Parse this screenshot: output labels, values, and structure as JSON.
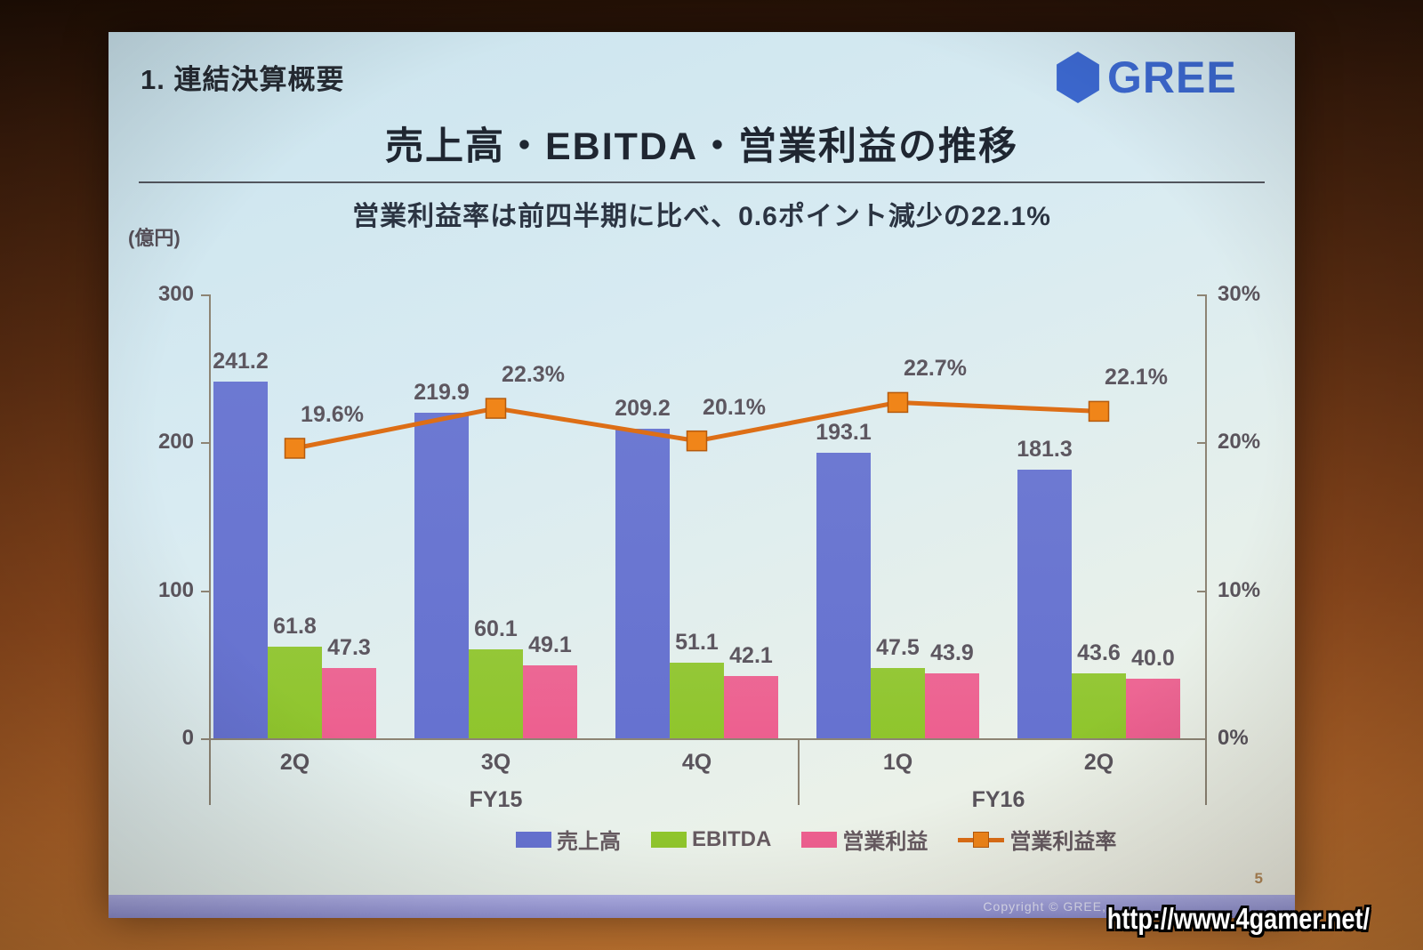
{
  "slide": {
    "section_title": "1. 連結決算概要",
    "title": "売上高・EBITDA・営業利益の推移",
    "subtitle": "営業利益率は前四半期に比べ、0.6ポイント減少の22.1%",
    "unit_label": "(億円)",
    "page_number": "5",
    "copyright": "Copyright © GREE,"
  },
  "logo": {
    "text": "GREE",
    "color": "#3c68cf"
  },
  "watermark": {
    "text": "http://www.4gamer.net/"
  },
  "chart_data": {
    "type": "bar",
    "title": "売上高・EBITDA・営業利益の推移",
    "categories": [
      "2Q",
      "3Q",
      "4Q",
      "1Q",
      "2Q"
    ],
    "category_groups": [
      {
        "label": "FY15",
        "from": 0,
        "to": 2
      },
      {
        "label": "FY16",
        "from": 3,
        "to": 4
      }
    ],
    "series": [
      {
        "name": "売上高",
        "type": "bar",
        "color": "#6672d0",
        "values": [
          241.2,
          219.9,
          209.2,
          193.1,
          181.3
        ]
      },
      {
        "name": "EBITDA",
        "type": "bar",
        "color": "#8fc52c",
        "values": [
          61.8,
          60.1,
          51.1,
          47.5,
          43.6
        ]
      },
      {
        "name": "営業利益",
        "type": "bar",
        "color": "#ed5f8f",
        "values": [
          47.3,
          49.1,
          42.1,
          43.9,
          40.0
        ]
      },
      {
        "name": "営業利益率",
        "type": "line",
        "axis": "right",
        "color": "#dd6e16",
        "marker_color": "#f08519",
        "values": [
          19.6,
          22.3,
          20.1,
          22.7,
          22.1
        ],
        "labels": [
          "19.6%",
          "22.3%",
          "20.1%",
          "22.7%",
          "22.1%"
        ]
      }
    ],
    "left_axis": {
      "unit": "(億円)",
      "range": [
        0,
        300
      ],
      "ticks": [
        300,
        200,
        100,
        0
      ]
    },
    "right_axis": {
      "range": [
        0,
        30
      ],
      "ticks_percent": [
        30,
        20,
        10,
        0
      ]
    },
    "legend": [
      "売上高",
      "EBITDA",
      "営業利益",
      "営業利益率"
    ],
    "legend_position": "bottom",
    "grid": false
  }
}
